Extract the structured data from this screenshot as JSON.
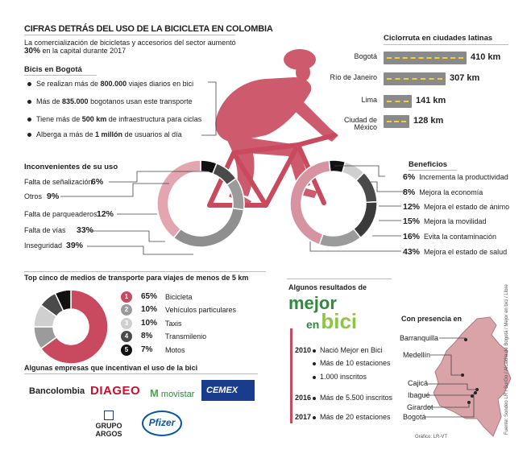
{
  "header": {
    "title": "CIFRAS DETRÁS DEL USO DE LA BICICLETA EN COLOMBIA",
    "subtitle_a": "La comercialización de bicicletas y accesorios del sector aumentó",
    "subtitle_pct": "30%",
    "subtitle_b": "en la capital durante 2017"
  },
  "bogota": {
    "heading": "Bicis en Bogotá",
    "facts": [
      {
        "pre": "Se realizan más de ",
        "bold": "800.000",
        "post": " viajes diarios en bici"
      },
      {
        "pre": "Más de ",
        "bold": "835.000",
        "post": " bogotanos usan este transporte"
      },
      {
        "pre": "Tiene más de ",
        "bold": "500 km",
        "post": " de infraestructura para ciclas"
      },
      {
        "pre": "Alberga a más de ",
        "bold": "1 millón",
        "post": " de usuarios al día"
      }
    ]
  },
  "ciclorruta": {
    "heading": "Ciclorruta en ciudades latinas",
    "rows": [
      {
        "city": "Bogotá",
        "km": "410 km",
        "value": 410
      },
      {
        "city": "Río de Janeiro",
        "km": "307 km",
        "value": 307
      },
      {
        "city": "Lima",
        "km": "141 km",
        "value": 141
      },
      {
        "city": "Ciudad de México",
        "km": "128 km",
        "value": 128
      }
    ]
  },
  "inconvenientes": {
    "heading": "Inconvenientes de su uso",
    "items": [
      {
        "label": "Falta de señalización",
        "pct": "6%"
      },
      {
        "label": "Otros",
        "pct": "9%"
      },
      {
        "label": "Falta de parqueaderos",
        "pct": "12%"
      },
      {
        "label": "Falta de vías",
        "pct": "33%"
      },
      {
        "label": "Inseguridad",
        "pct": "39%"
      }
    ]
  },
  "beneficios": {
    "heading": "Beneficios",
    "items": [
      {
        "pct": "6%",
        "label": "Incrementa la productividad"
      },
      {
        "pct": "8%",
        "label": "Mejora la economía"
      },
      {
        "pct": "12%",
        "label": "Mejora el estado de ánimo"
      },
      {
        "pct": "15%",
        "label": "Mejora la movilidad"
      },
      {
        "pct": "16%",
        "label": "Evita la contaminación"
      },
      {
        "pct": "43%",
        "label": "Mejora el estado de salud"
      }
    ]
  },
  "top5": {
    "heading": "Top cinco de medios de transporte para viajes de menos de 5 km",
    "items": [
      {
        "n": "1",
        "pct": "65%",
        "label": "Bicicleta",
        "value": 65,
        "color": "#c94a5e"
      },
      {
        "n": "2",
        "pct": "10%",
        "label": "Vehículos particulares",
        "value": 10,
        "color": "#9b9b9b"
      },
      {
        "n": "3",
        "pct": "10%",
        "label": "Taxis",
        "value": 10,
        "color": "#cfcfcf"
      },
      {
        "n": "4",
        "pct": "8%",
        "label": "Transmilenio",
        "value": 8,
        "color": "#4a4a4a"
      },
      {
        "n": "5",
        "pct": "7%",
        "label": "Motos",
        "value": 7,
        "color": "#111111"
      }
    ]
  },
  "empresas": {
    "heading": "Algunas empresas que incentivan el uso de la bici",
    "logos": [
      "Bancolombia",
      "DIAGEO",
      "movistar",
      "CEMEX",
      "GRUPO ARGOS",
      "Pfizer"
    ]
  },
  "resultados": {
    "heading": "Algunos resultados de",
    "logo_a": "mejor",
    "logo_b": "en",
    "logo_c": "bici",
    "timeline": [
      {
        "year": "2010",
        "text": "Nació Mejor en Bici"
      },
      {
        "year": "",
        "text": "Más de 10 estaciones"
      },
      {
        "year": "",
        "text": "1.000 inscritos"
      },
      {
        "year": "2016",
        "text": "Más de 5.500 inscritos"
      },
      {
        "year": "2017",
        "text": "Más de 20 estaciones"
      }
    ]
  },
  "presencia": {
    "heading": "Con presencia en",
    "cities": [
      "Barranquilla",
      "Medellín",
      "Cajicá",
      "Ibagué",
      "Girardot",
      "Bogotá"
    ]
  },
  "credits": {
    "source": "Fuente: Sondeo LR / SurGo / Alcaldía de Bogotá / Mejor en bici / Libre",
    "graphic": "Gráfico: LR-VT"
  },
  "chart_data": [
    {
      "type": "pie",
      "title": "Inconvenientes de su uso",
      "categories": [
        "Falta de señalización",
        "Otros",
        "Falta de parqueaderos",
        "Falta de vías",
        "Inseguridad"
      ],
      "values": [
        6,
        9,
        12,
        33,
        39
      ],
      "colors": [
        "#111111",
        "#4a4a4a",
        "#9b9b9b",
        "#8f8f8f",
        "#e3a5af"
      ]
    },
    {
      "type": "pie",
      "title": "Beneficios",
      "categories": [
        "Incrementa la productividad",
        "Mejora la economía",
        "Mejora el estado de ánimo",
        "Mejora la movilidad",
        "Evita la contaminación",
        "Mejora el estado de salud"
      ],
      "values": [
        6,
        8,
        12,
        15,
        16,
        43
      ],
      "colors": [
        "#111111",
        "#cfcfcf",
        "#4a4a4a",
        "#3a3a3a",
        "#9b9b9b",
        "#d7939f"
      ]
    },
    {
      "type": "pie",
      "title": "Top cinco de medios de transporte para viajes de menos de 5 km",
      "categories": [
        "Bicicleta",
        "Vehículos particulares",
        "Taxis",
        "Transmilenio",
        "Motos"
      ],
      "values": [
        65,
        10,
        10,
        8,
        7
      ]
    },
    {
      "type": "bar",
      "title": "Ciclorruta en ciudades latinas",
      "categories": [
        "Bogotá",
        "Río de Janeiro",
        "Lima",
        "Ciudad de México"
      ],
      "values": [
        410,
        307,
        141,
        128
      ],
      "ylabel": "km"
    }
  ]
}
